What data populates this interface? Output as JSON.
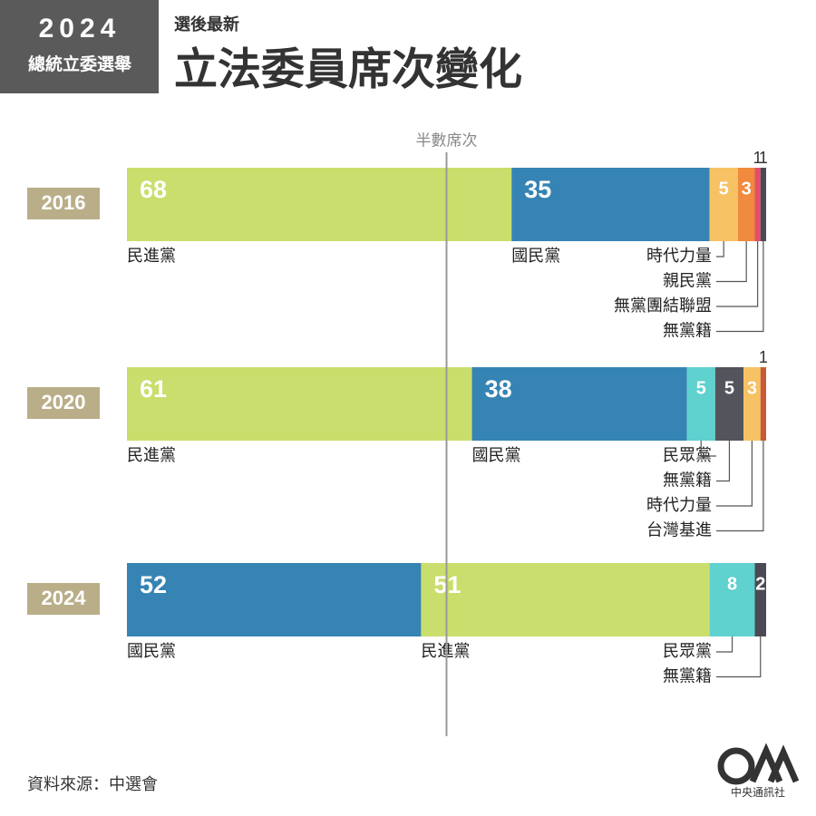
{
  "header": {
    "badge_year": "2024",
    "badge_text": "總統立委選舉",
    "subtitle": "選後最新",
    "title": "立法委員席次變化"
  },
  "half_line": {
    "label": "半數席次",
    "value": 56.5
  },
  "chart_data": [
    {
      "type": "stacked_bar",
      "categories": [
        "2016"
      ],
      "xlim": [
        0,
        113
      ],
      "series": [
        {
          "name": "民進黨",
          "color": "#c9de6c",
          "values": [
            68
          ]
        },
        {
          "name": "國民黨",
          "color": "#3584b3",
          "values": [
            35
          ]
        },
        {
          "name": "時代力量",
          "color": "#f7c263",
          "values": [
            5
          ]
        },
        {
          "name": "親民黨",
          "color": "#ef8a3e",
          "values": [
            3
          ]
        },
        {
          "name": "無黨團結聯盟",
          "color": "#e44d6b",
          "values": [
            1
          ]
        },
        {
          "name": "無黨籍",
          "color": "#4b4a54",
          "values": [
            1
          ]
        }
      ]
    },
    {
      "type": "stacked_bar",
      "categories": [
        "2020"
      ],
      "xlim": [
        0,
        113
      ],
      "series": [
        {
          "name": "民進黨",
          "color": "#c9de6c",
          "values": [
            61
          ]
        },
        {
          "name": "國民黨",
          "color": "#3584b3",
          "values": [
            38
          ]
        },
        {
          "name": "民眾黨",
          "color": "#5fd1cf",
          "values": [
            5
          ]
        },
        {
          "name": "無黨籍",
          "color": "#54545c",
          "values": [
            5
          ]
        },
        {
          "name": "時代力量",
          "color": "#f7c263",
          "values": [
            3
          ]
        },
        {
          "name": "台灣基進",
          "color": "#c85a35",
          "values": [
            1
          ]
        }
      ]
    },
    {
      "type": "stacked_bar",
      "categories": [
        "2024"
      ],
      "xlim": [
        0,
        113
      ],
      "series": [
        {
          "name": "國民黨",
          "color": "#3584b3",
          "values": [
            52
          ]
        },
        {
          "name": "民進黨",
          "color": "#c9de6c",
          "values": [
            51
          ]
        },
        {
          "name": "民眾黨",
          "color": "#5fd1cf",
          "values": [
            8
          ]
        },
        {
          "name": "無黨籍",
          "color": "#4b4a54",
          "values": [
            2
          ]
        }
      ]
    }
  ],
  "footer": {
    "source": "資料來源：中選會",
    "logo": "中央通訊社"
  }
}
